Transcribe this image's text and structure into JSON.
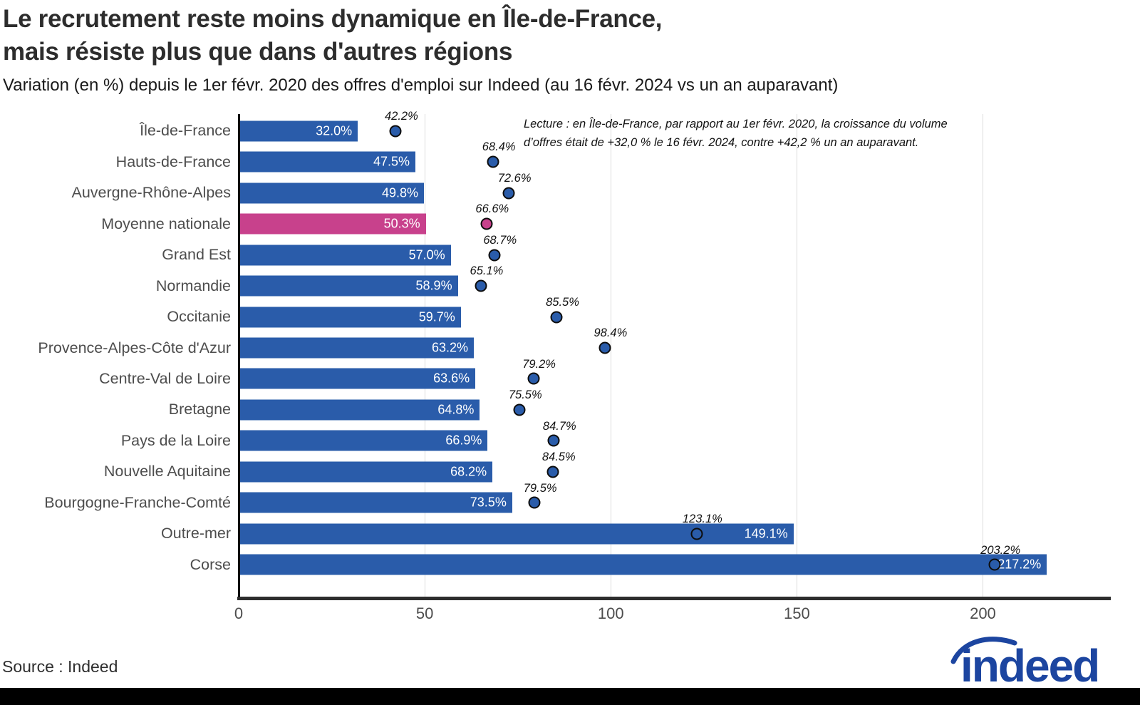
{
  "header": {
    "title_line1": "Le recrutement reste moins dynamique en Île-de-France,",
    "title_line2": "mais résiste plus que dans d'autres régions",
    "subtitle": "Variation (en %) depuis le 1er févr. 2020 des offres d'emploi sur Indeed (au 16 févr. 2024 vs un an auparavant)"
  },
  "annotation": {
    "line1": "Lecture : en Île-de-France, par rapport au 1er févr. 2020, la croissance du volume",
    "line2": "d’offres était de +32,0 % le 16 févr. 2024, contre +42,2 % un an auparavant."
  },
  "chart_data": {
    "type": "bar",
    "orientation": "horizontal",
    "title": "Variation (en %) depuis le 1er févr. 2020 des offres d'emploi sur Indeed",
    "categories": [
      "Île-de-France",
      "Hauts-de-France",
      "Auvergne-Rhône-Alpes",
      "Moyenne nationale",
      "Grand Est",
      "Normandie",
      "Occitanie",
      "Provence-Alpes-Côte d'Azur",
      "Centre-Val de Loire",
      "Bretagne",
      "Pays de la Loire",
      "Nouvelle Aquitaine",
      "Bourgogne-Franche-Comté",
      "Outre-mer",
      "Corse"
    ],
    "series": [
      {
        "name": "au 16 févr. 2024",
        "mark": "bar",
        "values": [
          32.0,
          47.5,
          49.8,
          50.3,
          57.0,
          58.9,
          59.7,
          63.2,
          63.6,
          64.8,
          66.9,
          68.2,
          73.5,
          149.1,
          217.2
        ],
        "labels": [
          "32.0%",
          "47.5%",
          "49.8%",
          "50.3%",
          "57.0%",
          "58.9%",
          "59.7%",
          "63.2%",
          "63.6%",
          "64.8%",
          "66.9%",
          "68.2%",
          "73.5%",
          "149.1%",
          "217.2%"
        ]
      },
      {
        "name": "un an auparavant",
        "mark": "dot",
        "values": [
          42.2,
          68.4,
          72.6,
          66.6,
          68.7,
          65.1,
          85.5,
          98.4,
          79.2,
          75.5,
          84.7,
          84.5,
          79.5,
          123.1,
          203.2
        ],
        "labels": [
          "42.2%",
          "68.4%",
          "72.6%",
          "66.6%",
          "68.7%",
          "65.1%",
          "85.5%",
          "98.4%",
          "79.2%",
          "75.5%",
          "84.7%",
          "84.5%",
          "79.5%",
          "123.1%",
          "203.2%"
        ]
      }
    ],
    "highlight_index": 3,
    "colors": {
      "bar": "#2a5caa",
      "highlight": "#c8418c",
      "dot_border": "#0d0d0d",
      "grid": "#dcdcdc"
    },
    "xlim": [
      0,
      234
    ],
    "ticks": [
      0,
      50,
      100,
      150,
      200
    ],
    "tick_labels": [
      "0",
      "50",
      "100",
      "150",
      "200"
    ],
    "grid": "vertical"
  },
  "footer": {
    "source": "Source : Indeed",
    "logo_text": "indeed",
    "logo_color": "#1c45a0",
    "strip_color": "#000000"
  }
}
